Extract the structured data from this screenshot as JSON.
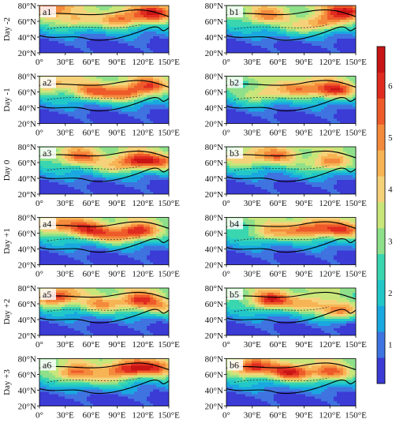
{
  "chart_data": {
    "type": "heatmap",
    "colorbar": {
      "ticks": [
        "1",
        "2",
        "3",
        "4",
        "5",
        "6"
      ],
      "levels": [
        0.5,
        1,
        1.5,
        2,
        2.5,
        3,
        3.5,
        4,
        4.5,
        5,
        5.5,
        6,
        6.5
      ],
      "colors": [
        "#3b3bd6",
        "#3f73e0",
        "#1aa8e0",
        "#22c8c8",
        "#3ad6b0",
        "#8ee08a",
        "#c8e67a",
        "#f5d27a",
        "#f7b455",
        "#f48a3c",
        "#ee5a2a",
        "#e02c20",
        "#c81414"
      ]
    },
    "x_ticks": [
      "0°",
      "30°E",
      "60°E",
      "90°E",
      "120°E",
      "150°E"
    ],
    "y_ticks": [
      "20°N",
      "40°N",
      "60°N",
      "80°N"
    ],
    "xlim": [
      0,
      150
    ],
    "ylim": [
      20,
      80
    ],
    "row_labels": [
      "Day -2",
      "Day -1",
      "Day 0",
      "Day +1",
      "Day +2",
      "Day +3"
    ],
    "panels": [
      {
        "label": "a1",
        "blobs": [
          {
            "lon": 95,
            "lat": 62,
            "value": 5.6
          },
          {
            "lon": 135,
            "lat": 70,
            "value": 5.9
          },
          {
            "lon": 40,
            "lat": 60,
            "value": 4.6
          },
          {
            "lon": 10,
            "lat": 75,
            "value": 5.2
          }
        ]
      },
      {
        "label": "b1",
        "blobs": [
          {
            "lon": 110,
            "lat": 58,
            "value": 5.4
          },
          {
            "lon": 140,
            "lat": 72,
            "value": 6.1
          },
          {
            "lon": 45,
            "lat": 66,
            "value": 5.0
          },
          {
            "lon": 75,
            "lat": 50,
            "value": 3.6
          }
        ]
      },
      {
        "label": "a2",
        "blobs": [
          {
            "lon": 100,
            "lat": 58,
            "value": 5.8
          },
          {
            "lon": 60,
            "lat": 60,
            "value": 5.4
          },
          {
            "lon": 130,
            "lat": 68,
            "value": 5.0
          },
          {
            "lon": 15,
            "lat": 70,
            "value": 4.4
          }
        ]
      },
      {
        "label": "b2",
        "blobs": [
          {
            "lon": 125,
            "lat": 62,
            "value": 6.2
          },
          {
            "lon": 85,
            "lat": 64,
            "value": 5.2
          },
          {
            "lon": 40,
            "lat": 56,
            "value": 4.6
          }
        ]
      },
      {
        "label": "a3",
        "blobs": [
          {
            "lon": 110,
            "lat": 62,
            "value": 6.0
          },
          {
            "lon": 45,
            "lat": 66,
            "value": 5.4
          },
          {
            "lon": 140,
            "lat": 60,
            "value": 5.0
          },
          {
            "lon": 80,
            "lat": 52,
            "value": 3.8
          }
        ]
      },
      {
        "label": "b3",
        "blobs": [
          {
            "lon": 120,
            "lat": 60,
            "value": 5.2
          },
          {
            "lon": 60,
            "lat": 68,
            "value": 4.8
          },
          {
            "lon": 95,
            "lat": 52,
            "value": 3.0
          },
          {
            "lon": 20,
            "lat": 64,
            "value": 4.4
          }
        ]
      },
      {
        "label": "a4",
        "blobs": [
          {
            "lon": 115,
            "lat": 62,
            "value": 6.1
          },
          {
            "lon": 55,
            "lat": 64,
            "value": 5.6
          },
          {
            "lon": 85,
            "lat": 56,
            "value": 4.8
          },
          {
            "lon": 20,
            "lat": 70,
            "value": 4.8
          }
        ]
      },
      {
        "label": "b4",
        "blobs": [
          {
            "lon": 95,
            "lat": 64,
            "value": 5.8
          },
          {
            "lon": 135,
            "lat": 64,
            "value": 5.6
          },
          {
            "lon": 50,
            "lat": 60,
            "value": 4.8
          }
        ]
      },
      {
        "label": "a5",
        "blobs": [
          {
            "lon": 20,
            "lat": 68,
            "value": 6.0
          },
          {
            "lon": 115,
            "lat": 64,
            "value": 5.8
          },
          {
            "lon": 70,
            "lat": 58,
            "value": 5.0
          },
          {
            "lon": 140,
            "lat": 54,
            "value": 4.4
          }
        ]
      },
      {
        "label": "b5",
        "blobs": [
          {
            "lon": 50,
            "lat": 64,
            "value": 6.2
          },
          {
            "lon": 130,
            "lat": 50,
            "value": 6.0
          },
          {
            "lon": 95,
            "lat": 60,
            "value": 4.8
          }
        ]
      },
      {
        "label": "a6",
        "blobs": [
          {
            "lon": 100,
            "lat": 66,
            "value": 6.0
          },
          {
            "lon": 40,
            "lat": 62,
            "value": 5.6
          },
          {
            "lon": 135,
            "lat": 68,
            "value": 5.2
          },
          {
            "lon": 70,
            "lat": 52,
            "value": 4.0
          }
        ]
      },
      {
        "label": "b6",
        "blobs": [
          {
            "lon": 30,
            "lat": 68,
            "value": 6.0
          },
          {
            "lon": 75,
            "lat": 62,
            "value": 6.2
          },
          {
            "lon": 120,
            "lat": 62,
            "value": 5.6
          }
        ]
      }
    ]
  }
}
